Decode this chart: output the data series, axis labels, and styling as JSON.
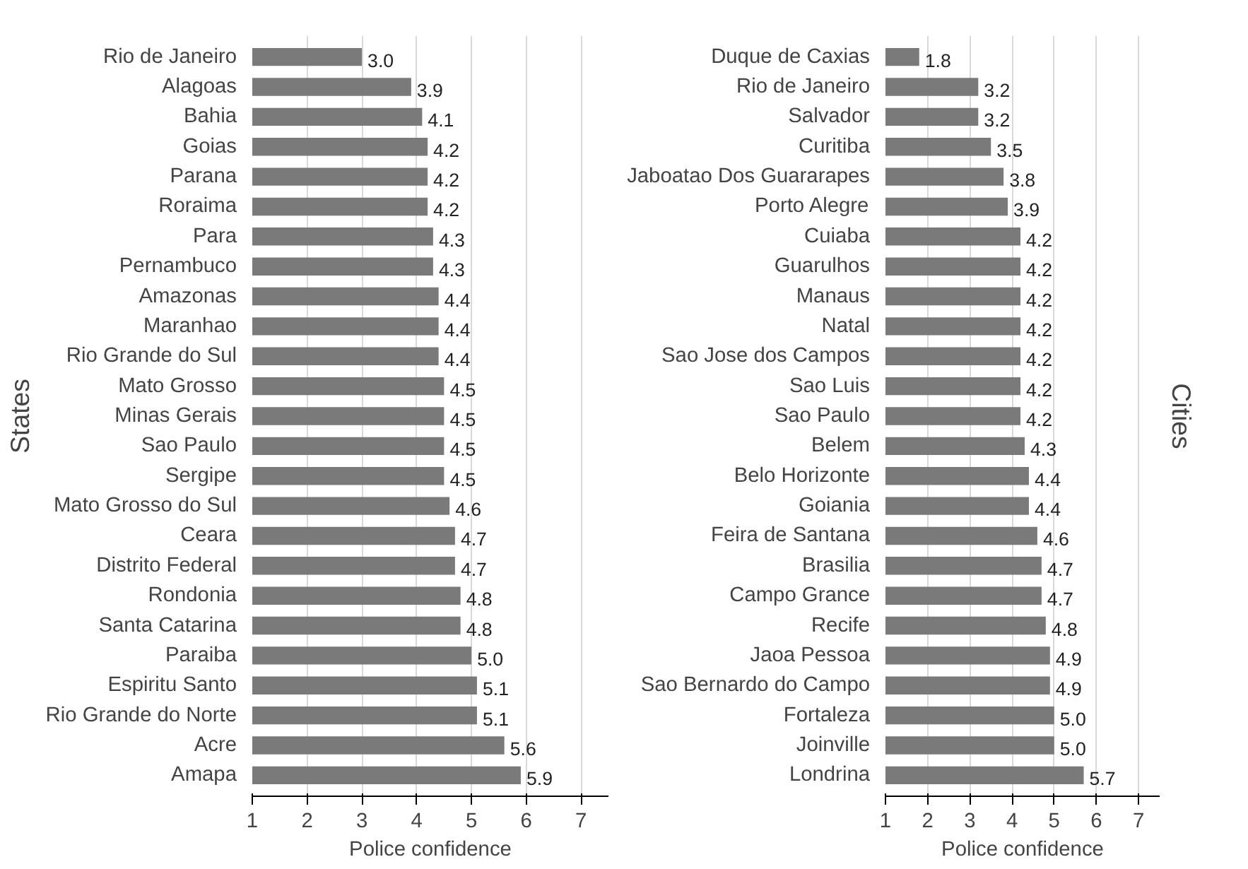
{
  "chart_data": [
    {
      "type": "bar",
      "orientation": "horizontal",
      "ylabel": "States",
      "xlabel": "Police confidence",
      "categories": [
        "Rio de Janeiro",
        "Alagoas",
        "Bahia",
        "Goias",
        "Parana",
        "Roraima",
        "Para",
        "Pernambuco",
        "Amazonas",
        "Maranhao",
        "Rio Grande do Sul",
        "Mato Grosso",
        "Minas Gerais",
        "Sao Paulo",
        "Sergipe",
        "Mato Grosso do Sul",
        "Ceara",
        "Distrito Federal",
        "Rondonia",
        "Santa Catarina",
        "Paraiba",
        "Espiritu Santo",
        "Rio Grande do Norte",
        "Acre",
        "Amapa"
      ],
      "values": [
        3.0,
        3.9,
        4.1,
        4.2,
        4.2,
        4.2,
        4.3,
        4.3,
        4.4,
        4.4,
        4.4,
        4.5,
        4.5,
        4.5,
        4.5,
        4.6,
        4.7,
        4.7,
        4.8,
        4.8,
        5.0,
        5.1,
        5.1,
        5.6,
        5.9
      ],
      "value_labels": [
        "3.0",
        "3.9",
        "4.1",
        "4.2",
        "4.2",
        "4.2",
        "4.3",
        "4.3",
        "4.4",
        "4.4",
        "4.4",
        "4.5",
        "4.5",
        "4.5",
        "4.5",
        "4.6",
        "4.7",
        "4.7",
        "4.8",
        "4.8",
        "5.0",
        "5.1",
        "5.1",
        "5.6",
        "5.9"
      ],
      "color": "#7a7a7a",
      "xlim": [
        1,
        7.5
      ],
      "xticks": [
        1,
        2,
        3,
        4,
        5,
        6,
        7
      ],
      "grid": "x"
    },
    {
      "type": "bar",
      "orientation": "horizontal",
      "ylabel": "Cities",
      "xlabel": "Police confidence",
      "categories": [
        "Duque de Caxias",
        "Rio de Janeiro",
        "Salvador",
        "Curitiba",
        "Jaboatao Dos Guararapes",
        "Porto Alegre",
        "Cuiaba",
        "Guarulhos",
        "Manaus",
        "Natal",
        "Sao Jose dos Campos",
        "Sao Luis",
        "Sao Paulo",
        "Belem",
        "Belo Horizonte",
        "Goiania",
        "Feira de Santana",
        "Brasilia",
        "Campo Grance",
        "Recife",
        "Jaoa Pessoa",
        "Sao Bernardo do Campo",
        "Fortaleza",
        "Joinville",
        "Londrina"
      ],
      "values": [
        1.8,
        3.2,
        3.2,
        3.5,
        3.8,
        3.9,
        4.2,
        4.2,
        4.2,
        4.2,
        4.2,
        4.2,
        4.2,
        4.3,
        4.4,
        4.4,
        4.6,
        4.7,
        4.7,
        4.8,
        4.9,
        4.9,
        5.0,
        5.0,
        5.7
      ],
      "value_labels": [
        "1.8",
        "3.2",
        "3.2",
        "3.5",
        "3.8",
        "3.9",
        "4.2",
        "4.2",
        "4.2",
        "4.2",
        "4.2",
        "4.2",
        "4.2",
        "4.3",
        "4.4",
        "4.4",
        "4.6",
        "4.7",
        "4.7",
        "4.8",
        "4.9",
        "4.9",
        "5.0",
        "5.0",
        "5.7"
      ],
      "color": "#7a7a7a",
      "xlim": [
        1,
        7.5
      ],
      "xticks": [
        1,
        2,
        3,
        4,
        5,
        6,
        7
      ],
      "grid": "x"
    }
  ]
}
